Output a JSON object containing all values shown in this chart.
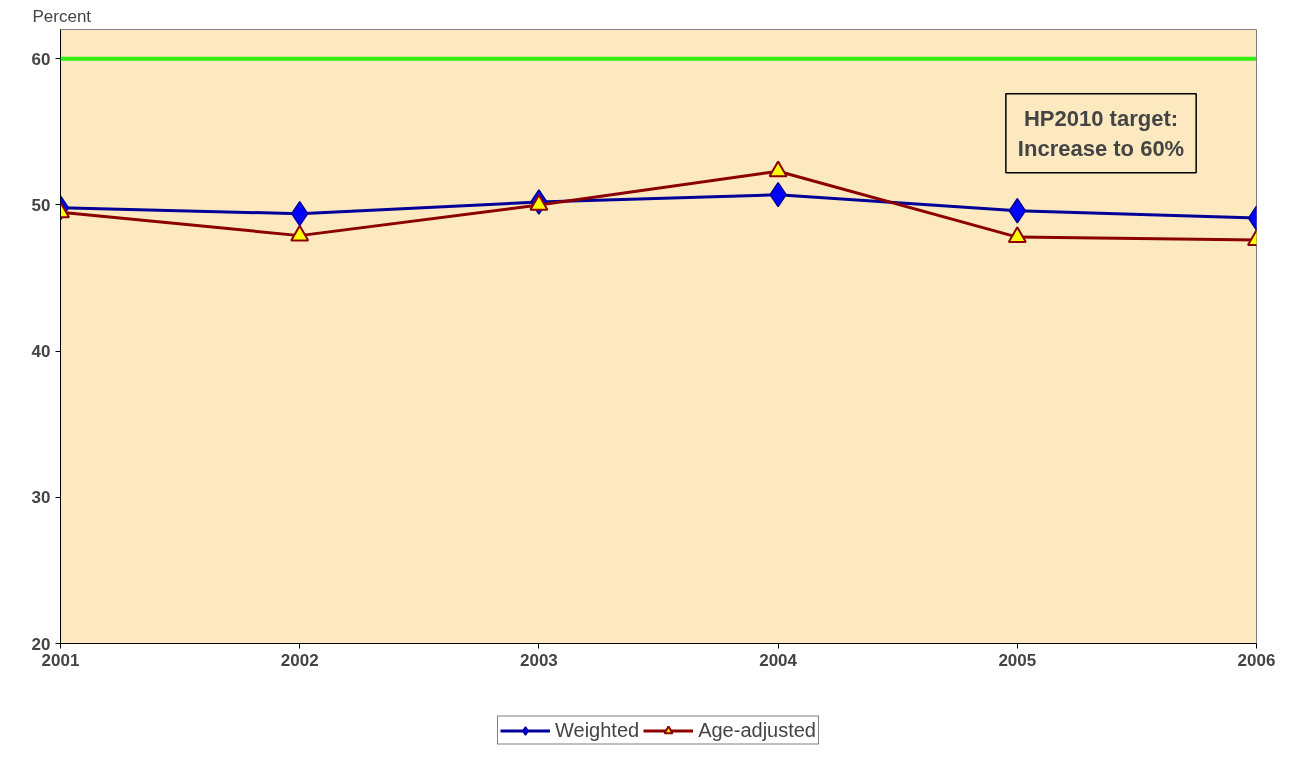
{
  "chart_data": {
    "type": "line",
    "ylabel": "Percent",
    "x": [
      2001,
      2002,
      2003,
      2004,
      2005,
      2006
    ],
    "series": [
      {
        "name": "Weighted",
        "color": "#000099",
        "marker": "diamond",
        "values": [
          49.8,
          49.4,
          50.2,
          50.7,
          49.6,
          49.1
        ]
      },
      {
        "name": "Age-adjusted",
        "color": "#8b0000",
        "marker": "triangle",
        "values": [
          49.5,
          47.9,
          50.0,
          52.3,
          47.8,
          47.6
        ]
      }
    ],
    "xlim": [
      2001,
      2006
    ],
    "xticks": [
      2001,
      2002,
      2003,
      2004,
      2005,
      2006
    ],
    "ylim": [
      20,
      62
    ],
    "yticks": [
      20,
      30,
      40,
      50,
      60
    ],
    "ref_lines": [
      {
        "axis": "y",
        "value": 60,
        "label": null,
        "color": "#33ee11"
      }
    ],
    "annotations": [
      "HP2010 target:\nIncrease to 60%"
    ],
    "grid": false,
    "legend": "bottom",
    "line_style": "solid"
  }
}
